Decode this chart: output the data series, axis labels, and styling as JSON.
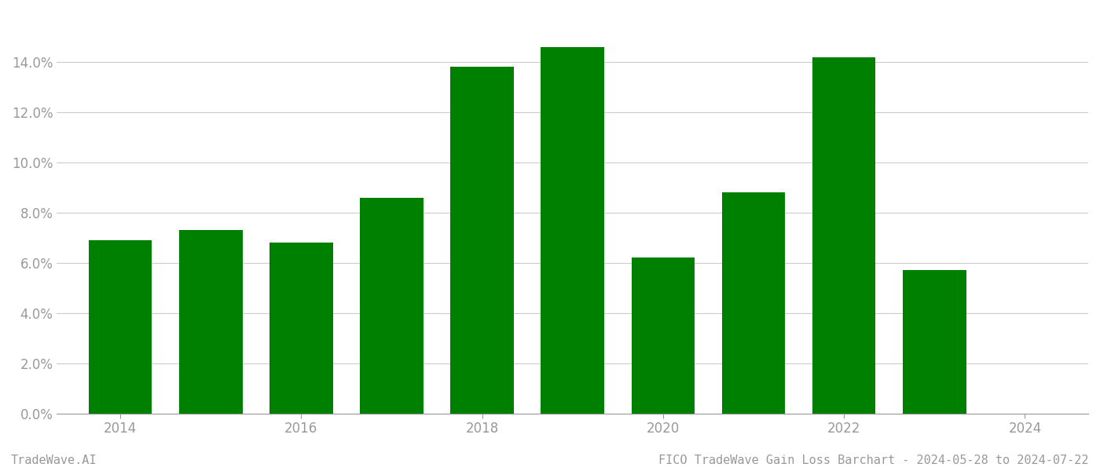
{
  "years": [
    2014,
    2015,
    2016,
    2017,
    2018,
    2019,
    2020,
    2021,
    2022,
    2023
  ],
  "values": [
    0.069,
    0.073,
    0.068,
    0.086,
    0.138,
    0.146,
    0.062,
    0.088,
    0.142,
    0.057
  ],
  "bar_color": "#008000",
  "background_color": "#ffffff",
  "ylim": [
    0,
    0.16
  ],
  "yticks": [
    0.0,
    0.02,
    0.04,
    0.06,
    0.08,
    0.1,
    0.12,
    0.14
  ],
  "xticks": [
    2014,
    2016,
    2018,
    2020,
    2022,
    2024
  ],
  "xlim": [
    2013.3,
    2024.7
  ],
  "grid_color": "#cccccc",
  "axis_color": "#999999",
  "tick_label_color": "#999999",
  "footer_left": "TradeWave.AI",
  "footer_right": "FICO TradeWave Gain Loss Barchart - 2024-05-28 to 2024-07-22",
  "footer_color": "#999999",
  "footer_fontsize": 11,
  "bar_width": 0.7
}
